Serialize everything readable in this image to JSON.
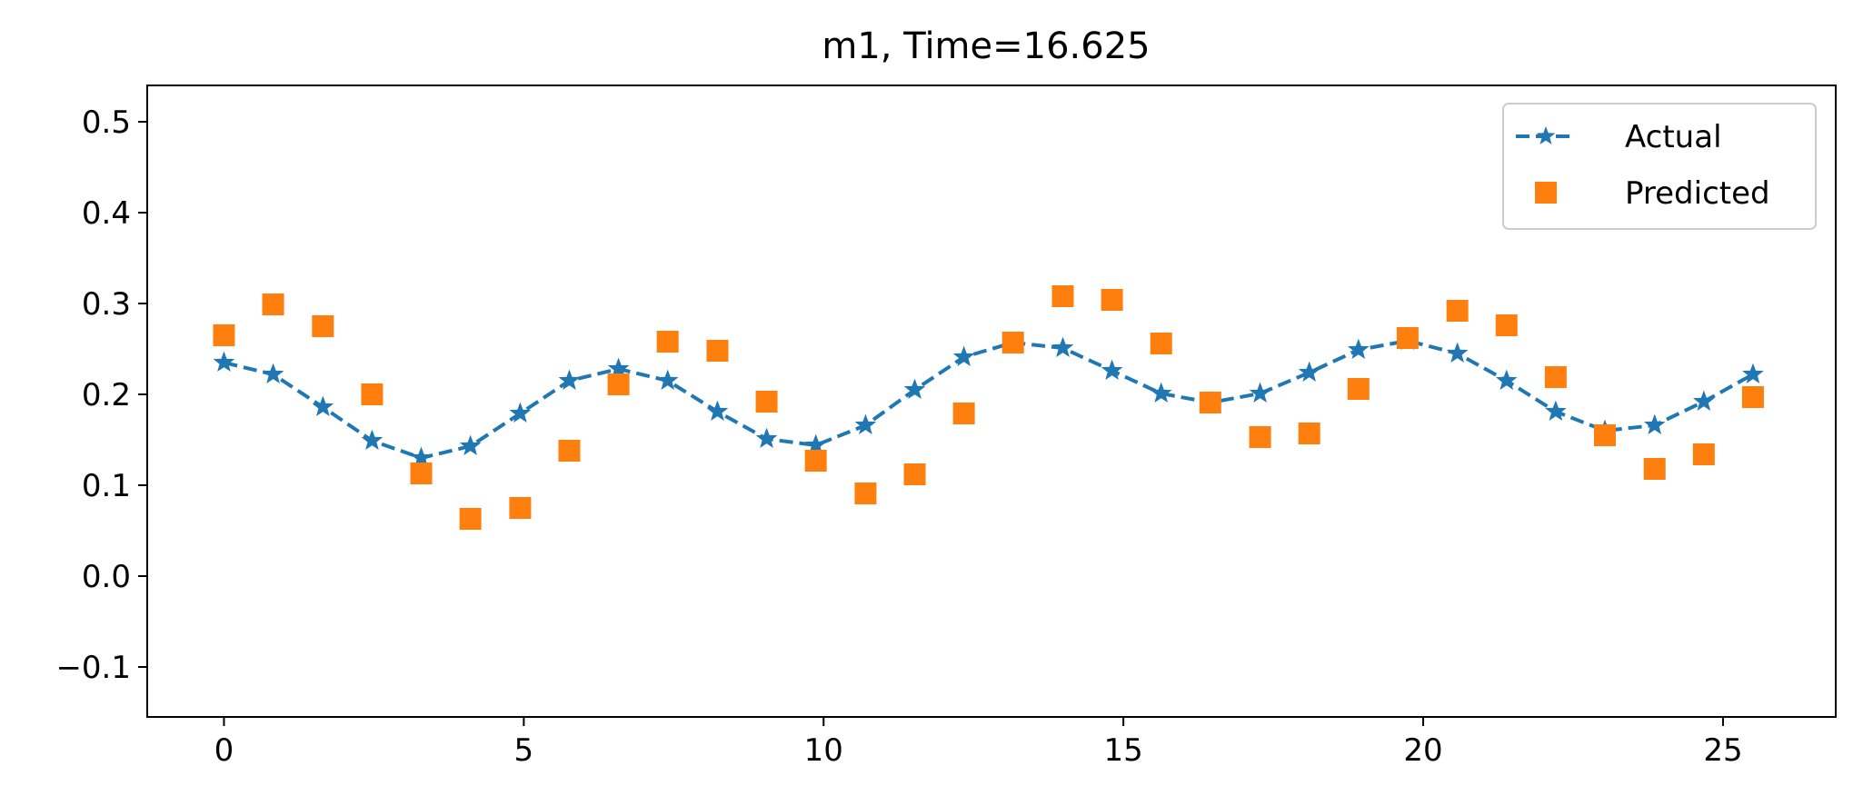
{
  "chart_data": {
    "type": "line",
    "title": "m1, Time=16.625",
    "xlabel": "",
    "ylabel": "",
    "xlim": [
      -1.28,
      26.88
    ],
    "ylim": [
      -0.155,
      0.54
    ],
    "xticks": [
      0,
      5,
      10,
      15,
      20,
      25
    ],
    "yticks": [
      -0.1,
      0.0,
      0.1,
      0.2,
      0.3,
      0.4,
      0.5
    ],
    "ytick_labels": [
      "−0.1",
      "0.0",
      "0.1",
      "0.2",
      "0.3",
      "0.4",
      "0.5"
    ],
    "grid": false,
    "legend_position": "top-right",
    "series": [
      {
        "name": "Actual",
        "style": "dashed line with star markers",
        "color": "#1f77b4",
        "x": [
          0,
          0.82,
          1.65,
          2.47,
          3.29,
          4.11,
          4.94,
          5.76,
          6.58,
          7.4,
          8.23,
          9.05,
          9.87,
          10.7,
          11.52,
          12.34,
          13.16,
          13.99,
          14.81,
          15.63,
          16.45,
          17.28,
          18.1,
          18.92,
          19.74,
          20.57,
          21.39,
          22.21,
          23.03,
          23.86,
          24.68,
          25.5
        ],
        "values": [
          0.235,
          0.222,
          0.186,
          0.149,
          0.13,
          0.143,
          0.179,
          0.215,
          0.228,
          0.215,
          0.181,
          0.151,
          0.144,
          0.166,
          0.205,
          0.241,
          0.257,
          0.251,
          0.226,
          0.201,
          0.191,
          0.201,
          0.224,
          0.249,
          0.259,
          0.245,
          0.215,
          0.181,
          0.16,
          0.166,
          0.192,
          0.222
        ]
      },
      {
        "name": "Predicted",
        "style": "square markers",
        "color": "#ff7f0e",
        "x": [
          0,
          0.82,
          1.65,
          2.47,
          3.29,
          4.11,
          4.94,
          5.76,
          6.58,
          7.4,
          8.23,
          9.05,
          9.87,
          10.7,
          11.52,
          12.34,
          13.16,
          13.99,
          14.81,
          15.63,
          16.45,
          17.28,
          18.1,
          18.92,
          19.74,
          20.57,
          21.39,
          22.21,
          23.03,
          23.86,
          24.68,
          25.5
        ],
        "values": [
          0.265,
          0.299,
          0.275,
          0.2,
          0.113,
          0.063,
          0.075,
          0.138,
          0.211,
          0.258,
          0.248,
          0.192,
          0.127,
          0.091,
          0.112,
          0.179,
          0.257,
          0.308,
          0.304,
          0.256,
          0.191,
          0.153,
          0.157,
          0.206,
          0.262,
          0.292,
          0.276,
          0.219,
          0.155,
          0.118,
          0.134,
          0.197
        ]
      }
    ]
  }
}
